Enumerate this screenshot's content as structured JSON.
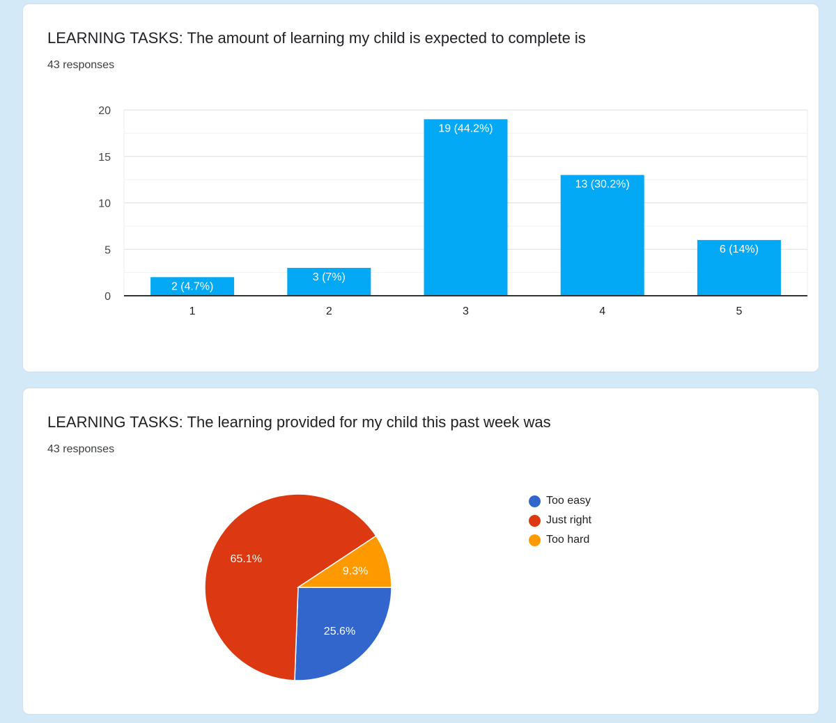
{
  "questions": [
    {
      "title": "LEARNING TASKS: The amount of learning my child is expected to complete is",
      "responses": "43 responses"
    },
    {
      "title": "LEARNING TASKS: The learning provided for my child this past week was",
      "responses": "43 responses"
    }
  ],
  "chart_data": [
    {
      "type": "bar",
      "title": "LEARNING TASKS: The amount of learning my child is expected to complete is",
      "categories": [
        "1",
        "2",
        "3",
        "4",
        "5"
      ],
      "values": [
        2,
        3,
        19,
        13,
        6
      ],
      "data_labels": [
        "2 (4.7%)",
        "3 (7%)",
        "19 (44.2%)",
        "13 (30.2%)",
        "6 (14%)"
      ],
      "ylim": [
        0,
        20
      ],
      "yticks": [
        0,
        5,
        10,
        15,
        20
      ],
      "grid": true,
      "color": "#03a9f4"
    },
    {
      "type": "pie",
      "title": "LEARNING TASKS: The learning provided for my child this past week was",
      "labels": [
        "Too easy",
        "Just right",
        "Too hard"
      ],
      "values": [
        25.6,
        65.1,
        9.3
      ],
      "data_labels": [
        "25.6%",
        "65.1%",
        "9.3%"
      ],
      "colors": [
        "#3366cc",
        "#dc3912",
        "#ff9900"
      ],
      "legend_position": "right"
    }
  ]
}
